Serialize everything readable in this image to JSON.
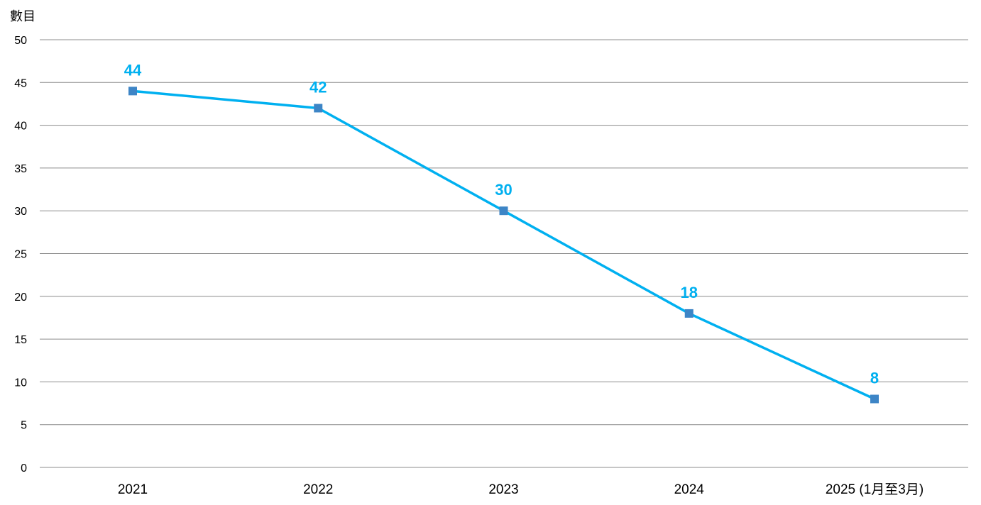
{
  "chart_data": {
    "type": "line",
    "title": "",
    "xlabel": "",
    "ylabel": "數目",
    "categories": [
      "2021",
      "2022",
      "2023",
      "2024",
      "2025 (1月至3月)"
    ],
    "series": [
      {
        "values": [
          44,
          42,
          30,
          18,
          8
        ]
      }
    ],
    "ylim": [
      0,
      50
    ],
    "ytick_step": 5,
    "grid": true,
    "legend": "none",
    "data_labels": true,
    "colors": {
      "line": "#00B0F0",
      "marker": "#3D85C6",
      "label": "#00B0F0",
      "grid": "#8C8C8C"
    }
  }
}
